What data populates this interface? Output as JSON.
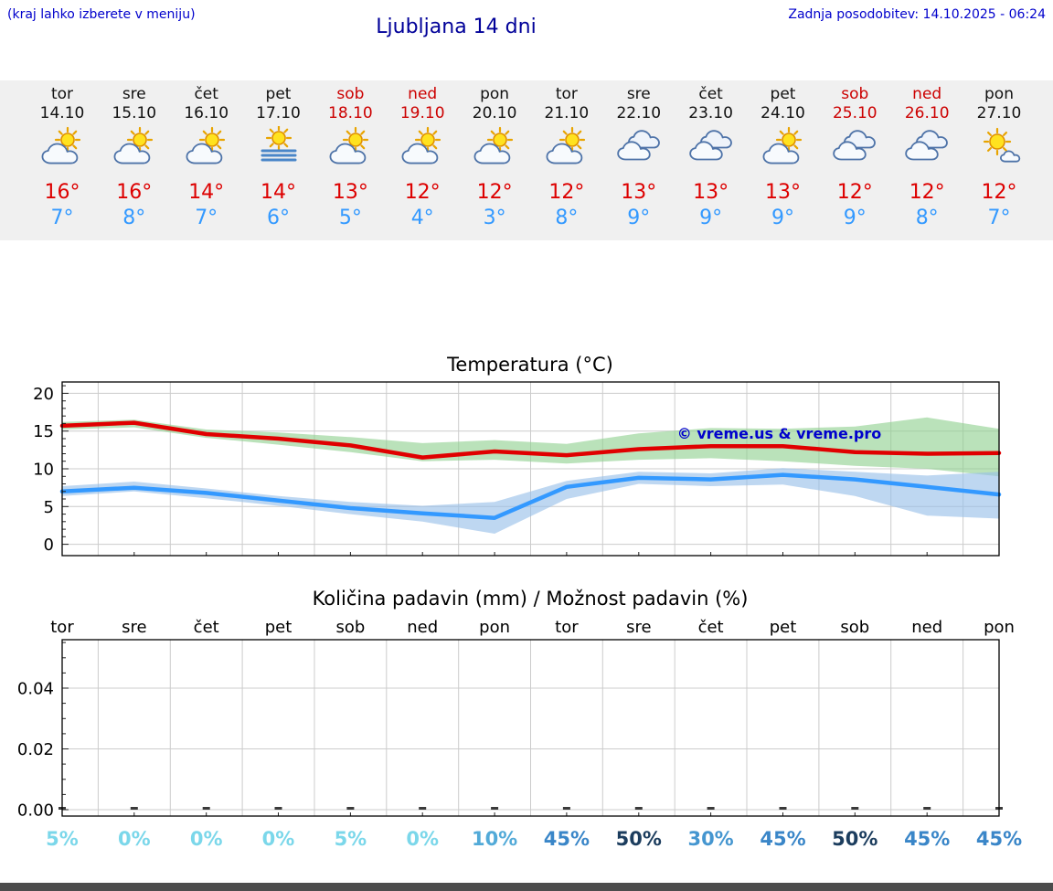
{
  "header": {
    "hint": "(kraj lahko izberete v meniju)",
    "title": "Ljubljana 14 dni",
    "last_update": "Zadnja posodobitev: 14.10.2025 - 06:24"
  },
  "forecast": {
    "days": [
      {
        "name": "tor",
        "date": "14.10",
        "icon": "partly-cloudy",
        "high": "16°",
        "low": "7°",
        "weekend": false
      },
      {
        "name": "sre",
        "date": "15.10",
        "icon": "partly-cloudy",
        "high": "16°",
        "low": "8°",
        "weekend": false
      },
      {
        "name": "čet",
        "date": "16.10",
        "icon": "partly-cloudy",
        "high": "14°",
        "low": "7°",
        "weekend": false
      },
      {
        "name": "pet",
        "date": "17.10",
        "icon": "fog",
        "high": "14°",
        "low": "6°",
        "weekend": false
      },
      {
        "name": "sob",
        "date": "18.10",
        "icon": "partly-cloudy",
        "high": "13°",
        "low": "5°",
        "weekend": true
      },
      {
        "name": "ned",
        "date": "19.10",
        "icon": "partly-cloudy",
        "high": "12°",
        "low": "4°",
        "weekend": true
      },
      {
        "name": "pon",
        "date": "20.10",
        "icon": "partly-cloudy",
        "high": "12°",
        "low": "3°",
        "weekend": false
      },
      {
        "name": "tor",
        "date": "21.10",
        "icon": "partly-cloudy",
        "high": "12°",
        "low": "8°",
        "weekend": false
      },
      {
        "name": "sre",
        "date": "22.10",
        "icon": "cloudy",
        "high": "13°",
        "low": "9°",
        "weekend": false
      },
      {
        "name": "čet",
        "date": "23.10",
        "icon": "cloudy",
        "high": "13°",
        "low": "9°",
        "weekend": false
      },
      {
        "name": "pet",
        "date": "24.10",
        "icon": "partly-cloudy",
        "high": "13°",
        "low": "9°",
        "weekend": false
      },
      {
        "name": "sob",
        "date": "25.10",
        "icon": "cloudy",
        "high": "12°",
        "low": "9°",
        "weekend": true
      },
      {
        "name": "ned",
        "date": "26.10",
        "icon": "cloudy",
        "high": "12°",
        "low": "8°",
        "weekend": true
      },
      {
        "name": "pon",
        "date": "27.10",
        "icon": "mostly-sunny",
        "high": "12°",
        "low": "7°",
        "weekend": false
      }
    ]
  },
  "chart_data": [
    {
      "type": "line",
      "title": "Temperatura (°C)",
      "categories": [
        "tor 14.10",
        "sre 15.10",
        "čet 16.10",
        "pet 17.10",
        "sob 18.10",
        "ned 19.10",
        "pon 20.10",
        "tor 21.10",
        "sre 22.10",
        "čet 23.10",
        "pet 24.10",
        "sob 25.10",
        "ned 26.10",
        "pon 27.10"
      ],
      "ylim": [
        -1.5,
        21.5
      ],
      "yticks": [
        0,
        5,
        10,
        15,
        20
      ],
      "grid": true,
      "legend": "none",
      "watermark": "© vreme.us & vreme.pro",
      "series": [
        {
          "name": "max temperature",
          "color": "#e00000",
          "values": [
            15.7,
            16.1,
            14.6,
            14.0,
            13.1,
            11.5,
            12.3,
            11.8,
            12.6,
            13.0,
            13.0,
            12.2,
            12.0,
            12.1
          ]
        },
        {
          "name": "min temperature",
          "color": "#3399ff",
          "values": [
            7.0,
            7.5,
            6.8,
            5.8,
            4.8,
            4.1,
            3.5,
            7.6,
            8.8,
            8.6,
            9.2,
            8.6,
            7.6,
            6.6
          ]
        }
      ],
      "bands": [
        {
          "name": "max temperature range",
          "color": "#8fd08f",
          "upper": [
            16.2,
            16.5,
            15.2,
            14.8,
            14.2,
            13.4,
            13.8,
            13.3,
            14.7,
            15.4,
            15.3,
            15.6,
            16.8,
            15.3
          ],
          "lower": [
            15.2,
            15.5,
            14.1,
            13.2,
            12.2,
            11.0,
            11.2,
            10.7,
            11.2,
            11.4,
            11.0,
            10.4,
            10.0,
            9.0
          ]
        },
        {
          "name": "min temperature range",
          "color": "#96bee8",
          "upper": [
            7.7,
            8.3,
            7.4,
            6.4,
            5.6,
            5.1,
            5.6,
            8.4,
            9.6,
            9.4,
            10.1,
            9.6,
            9.1,
            9.6
          ],
          "lower": [
            6.4,
            7.0,
            6.1,
            5.1,
            4.0,
            3.0,
            1.4,
            6.0,
            8.0,
            7.7,
            7.9,
            6.4,
            3.8,
            3.4
          ]
        }
      ]
    },
    {
      "type": "bar",
      "title": "Količina padavin (mm) / Možnost padavin (%)",
      "categories": [
        "tor",
        "sre",
        "čet",
        "pet",
        "sob",
        "ned",
        "pon",
        "tor",
        "sre",
        "čet",
        "pet",
        "sob",
        "ned",
        "pon"
      ],
      "values": [
        0,
        0,
        0,
        0,
        0,
        0,
        0,
        0,
        0,
        0,
        0,
        0,
        0,
        0
      ],
      "ylim": [
        0,
        0.056
      ],
      "ytick_labels": [
        "0.00",
        "0.02",
        "0.04"
      ],
      "probabilities": [
        {
          "label": "5%",
          "value": 5,
          "color": "#7bd7ea"
        },
        {
          "label": "0%",
          "value": 0,
          "color": "#7bd7ea"
        },
        {
          "label": "0%",
          "value": 0,
          "color": "#7bd7ea"
        },
        {
          "label": "0%",
          "value": 0,
          "color": "#7bd7ea"
        },
        {
          "label": "5%",
          "value": 5,
          "color": "#7bd7ea"
        },
        {
          "label": "0%",
          "value": 0,
          "color": "#7bd7ea"
        },
        {
          "label": "10%",
          "value": 10,
          "color": "#52aad8"
        },
        {
          "label": "45%",
          "value": 45,
          "color": "#3a86c8"
        },
        {
          "label": "50%",
          "value": 50,
          "color": "#1c3d5e"
        },
        {
          "label": "30%",
          "value": 30,
          "color": "#4596d0"
        },
        {
          "label": "45%",
          "value": 45,
          "color": "#3a86c8"
        },
        {
          "label": "50%",
          "value": 50,
          "color": "#1c3d5e"
        },
        {
          "label": "45%",
          "value": 45,
          "color": "#3a86c8"
        },
        {
          "label": "45%",
          "value": 45,
          "color": "#3a86c8"
        }
      ]
    }
  ],
  "colors": {
    "accent_blue": "#0000cc",
    "title_blue": "#000099",
    "high_red": "#dd0000",
    "low_blue": "#3399ff",
    "weekend_red": "#cc0000",
    "band_background": "#f0f0f0",
    "footer_bar": "#4c4c4c"
  }
}
